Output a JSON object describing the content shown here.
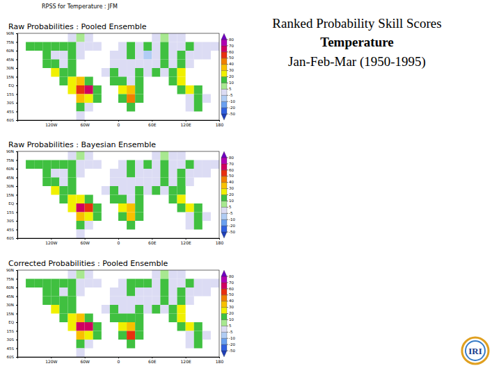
{
  "header": {
    "lines": [
      "Ranked Probability Skill Scores",
      "Temperature",
      "Jan-Feb-Mar (1950-1995)"
    ],
    "map_title": "RPSS for Temperature : JFM",
    "logo": "IRI"
  },
  "chart_data": [
    {
      "type": "heatmap",
      "title": "Raw Probabilities : Pooled Ensemble",
      "x": [
        -172.5,
        -157.5,
        -142.5,
        -127.5,
        -112.5,
        -97.5,
        -82.5,
        -67.5,
        -52.5,
        -37.5,
        -22.5,
        -7.5,
        7.5,
        22.5,
        37.5,
        52.5,
        67.5,
        82.5,
        97.5,
        112.5,
        127.5,
        142.5,
        157.5,
        172.5
      ],
      "y": [
        82.5,
        67.5,
        52.5,
        37.5,
        22.5,
        7.5,
        -7.5,
        -22.5,
        -37.5,
        -52.5
      ],
      "values": [
        [
          null,
          null,
          null,
          null,
          null,
          null,
          0,
          5,
          0,
          null,
          null,
          null,
          null,
          null,
          null,
          null,
          0,
          5,
          0,
          0,
          null,
          null,
          null,
          null
        ],
        [
          null,
          15,
          10,
          15,
          10,
          15,
          10,
          0,
          0,
          0,
          null,
          null,
          0,
          15,
          0,
          10,
          0,
          15,
          0,
          0,
          15,
          0,
          0,
          0
        ],
        [
          null,
          null,
          null,
          15,
          0,
          0,
          15,
          0,
          null,
          null,
          null,
          0,
          0,
          15,
          0,
          -10,
          0,
          15,
          0,
          15,
          0,
          0,
          0,
          null
        ],
        [
          null,
          null,
          null,
          15,
          10,
          0,
          15,
          null,
          null,
          null,
          null,
          0,
          0,
          0,
          -5,
          0,
          0,
          15,
          0,
          15,
          0,
          null,
          null,
          null
        ],
        [
          null,
          null,
          null,
          null,
          20,
          15,
          10,
          null,
          null,
          null,
          0,
          15,
          0,
          0,
          15,
          0,
          15,
          0,
          15,
          20,
          null,
          null,
          null,
          null
        ],
        [
          null,
          null,
          null,
          null,
          null,
          15,
          20,
          30,
          15,
          null,
          null,
          15,
          15,
          0,
          15,
          null,
          null,
          null,
          15,
          20,
          null,
          null,
          null,
          null
        ],
        [
          null,
          null,
          null,
          null,
          null,
          null,
          20,
          50,
          60,
          15,
          null,
          null,
          20,
          30,
          15,
          null,
          null,
          null,
          null,
          15,
          20,
          15,
          null,
          null
        ],
        [
          null,
          null,
          null,
          null,
          null,
          null,
          null,
          30,
          20,
          15,
          null,
          null,
          15,
          40,
          15,
          null,
          null,
          null,
          null,
          null,
          0,
          15,
          0,
          null
        ],
        [
          null,
          null,
          null,
          null,
          null,
          null,
          null,
          15,
          0,
          null,
          null,
          null,
          null,
          15,
          null,
          null,
          null,
          null,
          null,
          null,
          0,
          15,
          null,
          null
        ],
        [
          null,
          null,
          null,
          null,
          null,
          null,
          null,
          0,
          null,
          null,
          null,
          null,
          null,
          null,
          null,
          null,
          null,
          null,
          null,
          null,
          null,
          null,
          null,
          null
        ]
      ],
      "xlim": [
        -180,
        180
      ],
      "ylim": [
        -60,
        90
      ],
      "xticks": [
        {
          "value": -120,
          "label": "120W"
        },
        {
          "value": -60,
          "label": "60W"
        },
        0,
        {
          "value": 60,
          "label": "60E"
        },
        {
          "value": 120,
          "label": "120E"
        },
        180
      ],
      "yticks": [
        {
          "value": 90,
          "label": "90N"
        },
        {
          "value": 75,
          "label": "75N"
        },
        {
          "value": 60,
          "label": "60N"
        },
        {
          "value": 45,
          "label": "45N"
        },
        {
          "value": 30,
          "label": "30N"
        },
        {
          "value": 15,
          "label": "15N"
        },
        {
          "value": 0,
          "label": "EQ"
        },
        {
          "value": -15,
          "label": "15S"
        },
        {
          "value": -30,
          "label": "30S"
        },
        {
          "value": -45,
          "label": "45S"
        },
        {
          "value": -60,
          "label": "60S"
        }
      ],
      "colorbar": {
        "ticks": [
          -50,
          -20,
          -10,
          -5,
          5,
          10,
          20,
          30,
          40,
          50,
          60,
          70,
          80
        ],
        "colors": [
          "#1f3fb8",
          "#3060e0",
          "#6aa0f0",
          "#b0ccf4",
          "#dcdcf4",
          "#a8e890",
          "#40c040",
          "#f0f000",
          "#f8c000",
          "#f08000",
          "#e83010",
          "#d00060",
          "#b000b0",
          "#7000c0"
        ]
      }
    },
    {
      "type": "heatmap",
      "title": "Raw Probabilities : Bayesian Ensemble",
      "x": [
        -172.5,
        -157.5,
        -142.5,
        -127.5,
        -112.5,
        -97.5,
        -82.5,
        -67.5,
        -52.5,
        -37.5,
        -22.5,
        -7.5,
        7.5,
        22.5,
        37.5,
        52.5,
        67.5,
        82.5,
        97.5,
        112.5,
        127.5,
        142.5,
        157.5,
        172.5
      ],
      "y": [
        82.5,
        67.5,
        52.5,
        37.5,
        22.5,
        7.5,
        -7.5,
        -22.5,
        -37.5,
        -52.5
      ],
      "values": [
        [
          null,
          null,
          null,
          null,
          null,
          null,
          0,
          5,
          0,
          null,
          null,
          null,
          null,
          null,
          null,
          null,
          0,
          5,
          0,
          0,
          null,
          null,
          null,
          null
        ],
        [
          null,
          15,
          10,
          15,
          10,
          10,
          10,
          0,
          0,
          0,
          null,
          null,
          0,
          15,
          0,
          10,
          0,
          15,
          0,
          0,
          15,
          0,
          0,
          0
        ],
        [
          null,
          null,
          null,
          15,
          0,
          0,
          10,
          0,
          null,
          null,
          null,
          0,
          0,
          15,
          0,
          -5,
          0,
          15,
          0,
          15,
          0,
          0,
          0,
          null
        ],
        [
          null,
          null,
          null,
          15,
          10,
          0,
          15,
          null,
          null,
          null,
          null,
          0,
          0,
          0,
          -5,
          0,
          0,
          15,
          0,
          15,
          0,
          null,
          null,
          null
        ],
        [
          null,
          null,
          null,
          null,
          20,
          15,
          10,
          null,
          null,
          null,
          0,
          15,
          0,
          0,
          15,
          0,
          15,
          0,
          15,
          15,
          null,
          null,
          null,
          null
        ],
        [
          null,
          null,
          null,
          null,
          null,
          15,
          20,
          20,
          15,
          null,
          null,
          15,
          15,
          0,
          15,
          null,
          null,
          null,
          15,
          20,
          null,
          null,
          null,
          null
        ],
        [
          null,
          null,
          null,
          null,
          null,
          null,
          20,
          60,
          50,
          15,
          null,
          null,
          20,
          30,
          15,
          null,
          null,
          null,
          null,
          15,
          20,
          15,
          null,
          null
        ],
        [
          null,
          null,
          null,
          null,
          null,
          null,
          null,
          30,
          20,
          15,
          null,
          null,
          15,
          30,
          15,
          null,
          null,
          null,
          null,
          null,
          0,
          15,
          0,
          null
        ],
        [
          null,
          null,
          null,
          null,
          null,
          null,
          null,
          15,
          0,
          null,
          null,
          null,
          null,
          15,
          null,
          null,
          null,
          null,
          null,
          null,
          0,
          15,
          null,
          null
        ],
        [
          null,
          null,
          null,
          null,
          null,
          null,
          null,
          0,
          null,
          null,
          null,
          null,
          null,
          null,
          null,
          null,
          null,
          null,
          null,
          null,
          null,
          null,
          null,
          null
        ]
      ],
      "xlim": [
        -180,
        180
      ],
      "ylim": [
        -60,
        90
      ],
      "xticks": [
        {
          "value": -120,
          "label": "120W"
        },
        {
          "value": -60,
          "label": "60W"
        },
        0,
        {
          "value": 60,
          "label": "60E"
        },
        {
          "value": 120,
          "label": "120E"
        },
        180
      ],
      "yticks": [
        {
          "value": 90,
          "label": "90N"
        },
        {
          "value": 75,
          "label": "75N"
        },
        {
          "value": 60,
          "label": "60N"
        },
        {
          "value": 45,
          "label": "45N"
        },
        {
          "value": 30,
          "label": "30N"
        },
        {
          "value": 15,
          "label": "15N"
        },
        {
          "value": 0,
          "label": "EQ"
        },
        {
          "value": -15,
          "label": "15S"
        },
        {
          "value": -30,
          "label": "30S"
        },
        {
          "value": -45,
          "label": "45S"
        },
        {
          "value": -60,
          "label": "60S"
        }
      ],
      "colorbar": {
        "ticks": [
          -50,
          -20,
          -10,
          -5,
          5,
          10,
          20,
          30,
          40,
          50,
          60,
          70,
          80
        ],
        "colors": [
          "#1f3fb8",
          "#3060e0",
          "#6aa0f0",
          "#b0ccf4",
          "#dcdcf4",
          "#a8e890",
          "#40c040",
          "#f0f000",
          "#f8c000",
          "#f08000",
          "#e83010",
          "#d00060",
          "#b000b0",
          "#7000c0"
        ]
      }
    },
    {
      "type": "heatmap",
      "title": "Corrected Probabilities : Pooled Ensemble",
      "x": [
        -172.5,
        -157.5,
        -142.5,
        -127.5,
        -112.5,
        -97.5,
        -82.5,
        -67.5,
        -52.5,
        -37.5,
        -22.5,
        -7.5,
        7.5,
        22.5,
        37.5,
        52.5,
        67.5,
        82.5,
        97.5,
        112.5,
        127.5,
        142.5,
        157.5,
        172.5
      ],
      "y": [
        82.5,
        67.5,
        52.5,
        37.5,
        22.5,
        7.5,
        -7.5,
        -22.5,
        -37.5,
        -52.5
      ],
      "values": [
        [
          null,
          null,
          null,
          null,
          null,
          null,
          0,
          5,
          0,
          null,
          null,
          null,
          null,
          null,
          null,
          null,
          0,
          5,
          0,
          0,
          null,
          null,
          null,
          null
        ],
        [
          null,
          15,
          10,
          15,
          10,
          15,
          10,
          0,
          0,
          0,
          null,
          null,
          0,
          15,
          10,
          10,
          0,
          15,
          0,
          0,
          15,
          0,
          0,
          0
        ],
        [
          null,
          null,
          null,
          15,
          10,
          0,
          15,
          0,
          null,
          null,
          null,
          0,
          0,
          15,
          0,
          -5,
          0,
          15,
          0,
          15,
          0,
          0,
          0,
          null
        ],
        [
          null,
          null,
          null,
          15,
          10,
          10,
          15,
          null,
          null,
          null,
          null,
          0,
          0,
          0,
          -5,
          0,
          0,
          15,
          0,
          15,
          0,
          null,
          null,
          null
        ],
        [
          null,
          null,
          null,
          null,
          20,
          15,
          10,
          null,
          null,
          null,
          0,
          15,
          0,
          0,
          15,
          0,
          15,
          0,
          15,
          20,
          null,
          null,
          null,
          null
        ],
        [
          null,
          null,
          null,
          null,
          null,
          15,
          20,
          30,
          15,
          null,
          null,
          15,
          15,
          10,
          15,
          null,
          null,
          null,
          15,
          20,
          null,
          null,
          null,
          null
        ],
        [
          null,
          null,
          null,
          null,
          null,
          null,
          20,
          60,
          60,
          15,
          null,
          null,
          20,
          30,
          15,
          null,
          null,
          null,
          null,
          15,
          20,
          15,
          null,
          null
        ],
        [
          null,
          null,
          null,
          null,
          null,
          null,
          null,
          30,
          20,
          15,
          null,
          null,
          15,
          50,
          15,
          null,
          null,
          null,
          null,
          null,
          0,
          15,
          0,
          null
        ],
        [
          null,
          null,
          null,
          null,
          null,
          null,
          null,
          15,
          0,
          null,
          null,
          null,
          null,
          15,
          null,
          null,
          null,
          null,
          null,
          null,
          0,
          15,
          null,
          null
        ],
        [
          null,
          null,
          null,
          null,
          null,
          null,
          null,
          0,
          null,
          null,
          null,
          null,
          null,
          null,
          null,
          null,
          null,
          null,
          null,
          null,
          null,
          null,
          null,
          null
        ]
      ],
      "xlim": [
        -180,
        180
      ],
      "ylim": [
        -60,
        90
      ],
      "xticks": [
        {
          "value": -120,
          "label": "120W"
        },
        {
          "value": -60,
          "label": "60W"
        },
        0,
        {
          "value": 60,
          "label": "60E"
        },
        {
          "value": 120,
          "label": "120E"
        },
        180
      ],
      "yticks": [
        {
          "value": 90,
          "label": "90N"
        },
        {
          "value": 75,
          "label": "75N"
        },
        {
          "value": 60,
          "label": "60N"
        },
        {
          "value": 45,
          "label": "45N"
        },
        {
          "value": 30,
          "label": "30N"
        },
        {
          "value": 15,
          "label": "15N"
        },
        {
          "value": 0,
          "label": "EQ"
        },
        {
          "value": -15,
          "label": "15S"
        },
        {
          "value": -30,
          "label": "30S"
        },
        {
          "value": -45,
          "label": "45S"
        },
        {
          "value": -60,
          "label": "60S"
        }
      ],
      "colorbar": {
        "ticks": [
          -50,
          -20,
          -10,
          -5,
          5,
          10,
          20,
          30,
          40,
          50,
          60,
          70,
          80
        ],
        "colors": [
          "#1f3fb8",
          "#3060e0",
          "#6aa0f0",
          "#b0ccf4",
          "#dcdcf4",
          "#a8e890",
          "#40c040",
          "#f0f000",
          "#f8c000",
          "#f08000",
          "#e83010",
          "#d00060",
          "#b000b0",
          "#7000c0"
        ]
      }
    }
  ]
}
